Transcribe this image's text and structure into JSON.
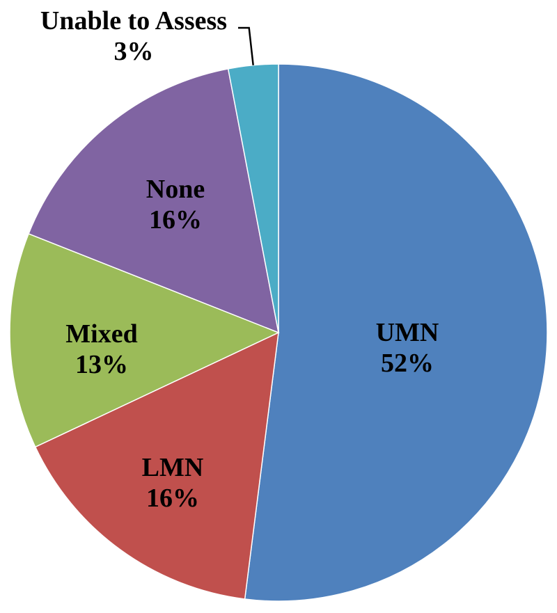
{
  "chart_data": {
    "type": "pie",
    "title": "",
    "start_angle_deg": 0,
    "direction": "clockwise",
    "slices": [
      {
        "label": "UMN",
        "value": 52,
        "value_label": "52%",
        "color": "#4F81BD"
      },
      {
        "label": "LMN",
        "value": 16,
        "value_label": "16%",
        "color": "#C0504D"
      },
      {
        "label": "Mixed",
        "value": 13,
        "value_label": "13%",
        "color": "#9BBB59"
      },
      {
        "label": "None",
        "value": 16,
        "value_label": "16%",
        "color": "#8064A2"
      },
      {
        "label": "Unable to Assess",
        "value": 3,
        "value_label": "3%",
        "color": "#4BACC6"
      }
    ],
    "legend": "none",
    "labels_position": "inside, outside with leader line for smallest slice"
  }
}
